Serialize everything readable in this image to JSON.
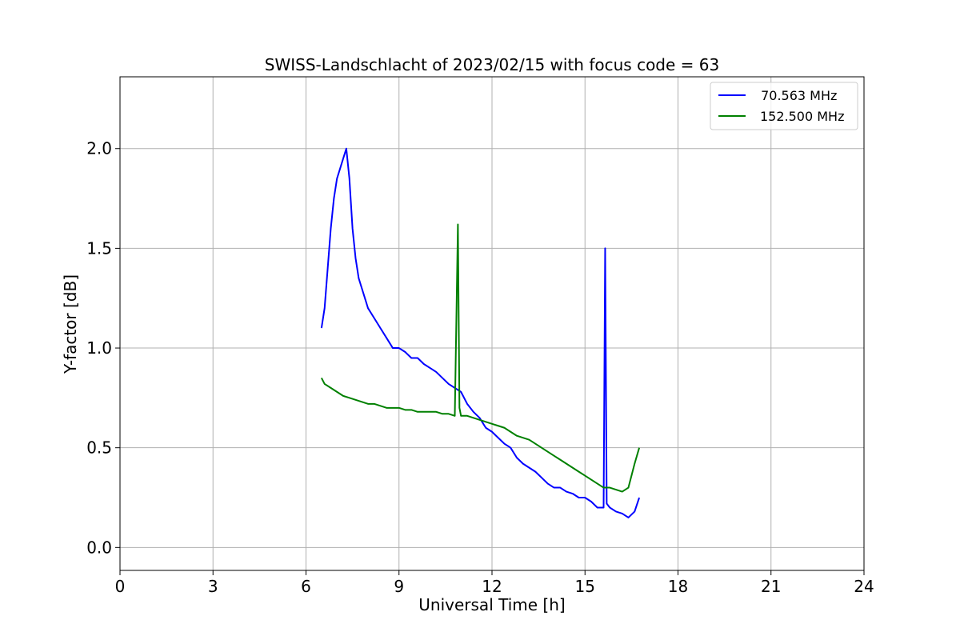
{
  "chart_data": {
    "type": "line",
    "title": "SWISS-Landschlacht of 2023/02/15 with focus code = 63",
    "xlabel": "Universal Time [h]",
    "ylabel": "Y-factor [dB]",
    "xlim": [
      0,
      24
    ],
    "ylim": [
      -0.115,
      2.36
    ],
    "xticks": [
      0,
      3,
      6,
      9,
      12,
      15,
      18,
      21,
      24
    ],
    "xtick_labels": [
      "0",
      "3",
      "6",
      "9",
      "12",
      "15",
      "18",
      "21",
      "24"
    ],
    "yticks": [
      0.0,
      0.5,
      1.0,
      1.5,
      2.0
    ],
    "ytick_labels": [
      "0.0",
      "0.5",
      "1.0",
      "1.5",
      "2.0"
    ],
    "grid": true,
    "legend_position": "top-right",
    "series": [
      {
        "name": " 70.563 MHz",
        "color": "#0000ff",
        "x": [
          6.5,
          6.6,
          6.7,
          6.8,
          6.9,
          7.0,
          7.1,
          7.2,
          7.3,
          7.4,
          7.5,
          7.6,
          7.7,
          7.8,
          7.9,
          8.0,
          8.2,
          8.4,
          8.6,
          8.8,
          9.0,
          9.2,
          9.4,
          9.6,
          9.8,
          10.0,
          10.2,
          10.4,
          10.6,
          10.8,
          11.0,
          11.2,
          11.4,
          11.6,
          11.8,
          12.0,
          12.2,
          12.4,
          12.6,
          12.8,
          13.0,
          13.2,
          13.4,
          13.6,
          13.8,
          14.0,
          14.2,
          14.4,
          14.6,
          14.8,
          15.0,
          15.2,
          15.4,
          15.6,
          15.65,
          15.7,
          15.8,
          16.0,
          16.2,
          16.4,
          16.6,
          16.75
        ],
        "y": [
          1.1,
          1.2,
          1.4,
          1.6,
          1.75,
          1.85,
          1.9,
          1.95,
          2.0,
          1.85,
          1.6,
          1.45,
          1.35,
          1.3,
          1.25,
          1.2,
          1.15,
          1.1,
          1.05,
          1.0,
          1.0,
          0.98,
          0.95,
          0.95,
          0.92,
          0.9,
          0.88,
          0.85,
          0.82,
          0.8,
          0.78,
          0.72,
          0.68,
          0.65,
          0.6,
          0.58,
          0.55,
          0.52,
          0.5,
          0.45,
          0.42,
          0.4,
          0.38,
          0.35,
          0.32,
          0.3,
          0.3,
          0.28,
          0.27,
          0.25,
          0.25,
          0.23,
          0.2,
          0.2,
          1.5,
          0.22,
          0.2,
          0.18,
          0.17,
          0.15,
          0.18,
          0.25
        ]
      },
      {
        "name": "152.500 MHz",
        "color": "#008000",
        "x": [
          6.5,
          6.6,
          6.8,
          7.0,
          7.2,
          7.4,
          7.6,
          7.8,
          8.0,
          8.2,
          8.4,
          8.6,
          8.8,
          9.0,
          9.2,
          9.4,
          9.6,
          9.8,
          10.0,
          10.2,
          10.4,
          10.6,
          10.8,
          10.9,
          10.95,
          11.0,
          11.2,
          11.4,
          11.6,
          11.8,
          12.0,
          12.2,
          12.4,
          12.6,
          12.8,
          13.0,
          13.2,
          13.4,
          13.6,
          13.8,
          14.0,
          14.2,
          14.4,
          14.6,
          14.8,
          15.0,
          15.2,
          15.4,
          15.6,
          15.8,
          16.0,
          16.2,
          16.4,
          16.6,
          16.75
        ],
        "y": [
          0.85,
          0.82,
          0.8,
          0.78,
          0.76,
          0.75,
          0.74,
          0.73,
          0.72,
          0.72,
          0.71,
          0.7,
          0.7,
          0.7,
          0.69,
          0.69,
          0.68,
          0.68,
          0.68,
          0.68,
          0.67,
          0.67,
          0.66,
          1.62,
          0.7,
          0.66,
          0.66,
          0.65,
          0.64,
          0.63,
          0.62,
          0.61,
          0.6,
          0.58,
          0.56,
          0.55,
          0.54,
          0.52,
          0.5,
          0.48,
          0.46,
          0.44,
          0.42,
          0.4,
          0.38,
          0.36,
          0.34,
          0.32,
          0.3,
          0.3,
          0.29,
          0.28,
          0.3,
          0.42,
          0.5
        ]
      }
    ]
  }
}
